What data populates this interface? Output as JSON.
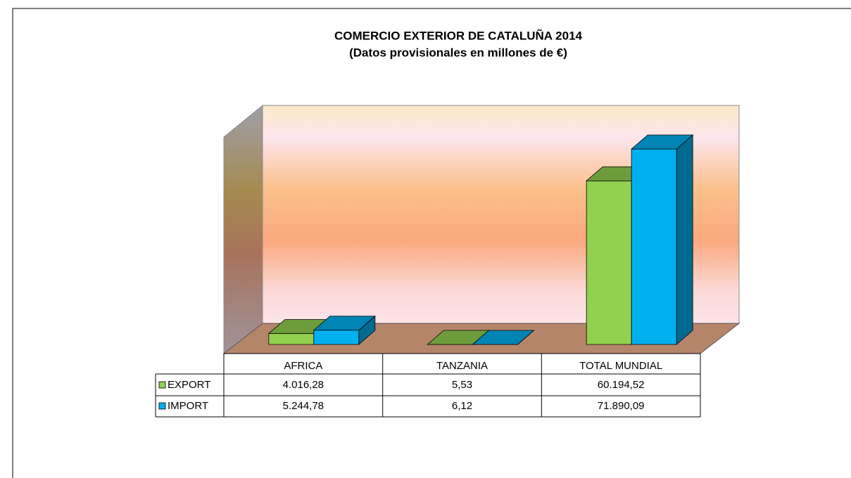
{
  "chart_data": {
    "type": "bar",
    "title": "COMERCIO EXTERIOR DE CATALUÑA 2014",
    "subtitle": "(Datos provisionales en millones de €)",
    "categories": [
      "AFRICA",
      "TANZANIA",
      "TOTAL MUNDIAL"
    ],
    "series": [
      {
        "name": "EXPORT",
        "color": "#92d050",
        "values": [
          4016.28,
          5.53,
          60194.52
        ],
        "value_labels": [
          "4.016,28",
          "5,53",
          "60.194,52"
        ]
      },
      {
        "name": "IMPORT",
        "color": "#00b0f0",
        "values": [
          5244.78,
          6.12,
          71890.09
        ],
        "value_labels": [
          "5.244,78",
          "6,12",
          "71.890,09"
        ]
      }
    ]
  }
}
